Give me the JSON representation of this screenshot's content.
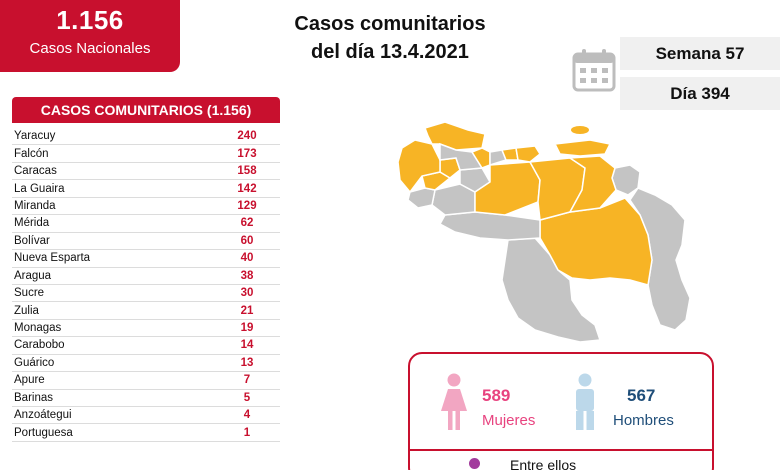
{
  "national": {
    "count": "1.156",
    "label": "Casos Nacionales"
  },
  "title": {
    "line1": "Casos comunitarios",
    "line2": "del día 13.4.2021"
  },
  "week": "Semana 57",
  "day": "Día 394",
  "table": {
    "header": "CASOS COMUNITARIOS (1.156)",
    "rows": [
      {
        "state": "Yaracuy",
        "cases": "240"
      },
      {
        "state": "Falcón",
        "cases": "173"
      },
      {
        "state": "Caracas",
        "cases": "158"
      },
      {
        "state": "La Guaira",
        "cases": "142"
      },
      {
        "state": "Miranda",
        "cases": "129"
      },
      {
        "state": "Mérida",
        "cases": "62"
      },
      {
        "state": "Bolívar",
        "cases": "60"
      },
      {
        "state": "Nueva Esparta",
        "cases": "40"
      },
      {
        "state": "Aragua",
        "cases": "38"
      },
      {
        "state": "Sucre",
        "cases": "30"
      },
      {
        "state": "Zulia",
        "cases": "21"
      },
      {
        "state": "Monagas",
        "cases": "19"
      },
      {
        "state": "Carabobo",
        "cases": "14"
      },
      {
        "state": "Guárico",
        "cases": "13"
      },
      {
        "state": "Apure",
        "cases": "7"
      },
      {
        "state": "Barinas",
        "cases": "5"
      },
      {
        "state": "Anzoátegui",
        "cases": "4"
      },
      {
        "state": "Portuguesa",
        "cases": "1"
      }
    ]
  },
  "gender": {
    "women_count": "589",
    "women_label": "Mujeres",
    "men_count": "567",
    "men_label": "Hombres",
    "footer": "Entre ellos"
  },
  "colors": {
    "brand_red": "#c8102e",
    "map_highlight": "#f7b425",
    "map_other": "#c4c4c4",
    "women": "#e8437f",
    "men": "#1f4e79"
  },
  "icons": [
    "calendar-icon",
    "woman-icon",
    "man-icon"
  ]
}
